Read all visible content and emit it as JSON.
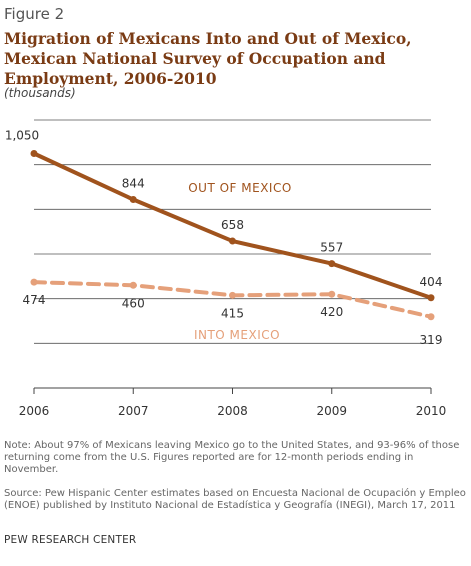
{
  "figure_label": "Figure 2",
  "chart_data": {
    "type": "line",
    "title": "Migration of Mexicans Into and Out of Mexico, Mexican National Survey of Occupation and Employment, 2006-2010",
    "subtitle": "(thousands)",
    "x": [
      "2006",
      "2007",
      "2008",
      "2009",
      "2010"
    ],
    "ylim": [
      0,
      1200
    ],
    "grid": true,
    "series": [
      {
        "name": "OUT OF MEXICO",
        "values": [
          1050,
          844,
          658,
          557,
          404
        ],
        "labels": [
          "1,050",
          "844",
          "658",
          "557",
          "404"
        ],
        "color": "#a0531d",
        "style": "solid"
      },
      {
        "name": "INTO MEXICO",
        "values": [
          474,
          460,
          415,
          420,
          319
        ],
        "labels": [
          "474",
          "460",
          "415",
          "420",
          "319"
        ],
        "color": "#e5a07a",
        "style": "dashed"
      }
    ]
  },
  "note": "Note: About 97% of Mexicans leaving Mexico go to the United States, and 93-96% of those returning come from the U.S. Figures reported are for 12-month periods ending in November.",
  "source": "Source: Pew Hispanic Center estimates based on Encuesta Nacional de Ocupación y Empleo (ENOE) published by Instituto Nacional de Estadística y Geografía (INEGI), March 17, 2011",
  "footer": "PEW RESEARCH CENTER"
}
